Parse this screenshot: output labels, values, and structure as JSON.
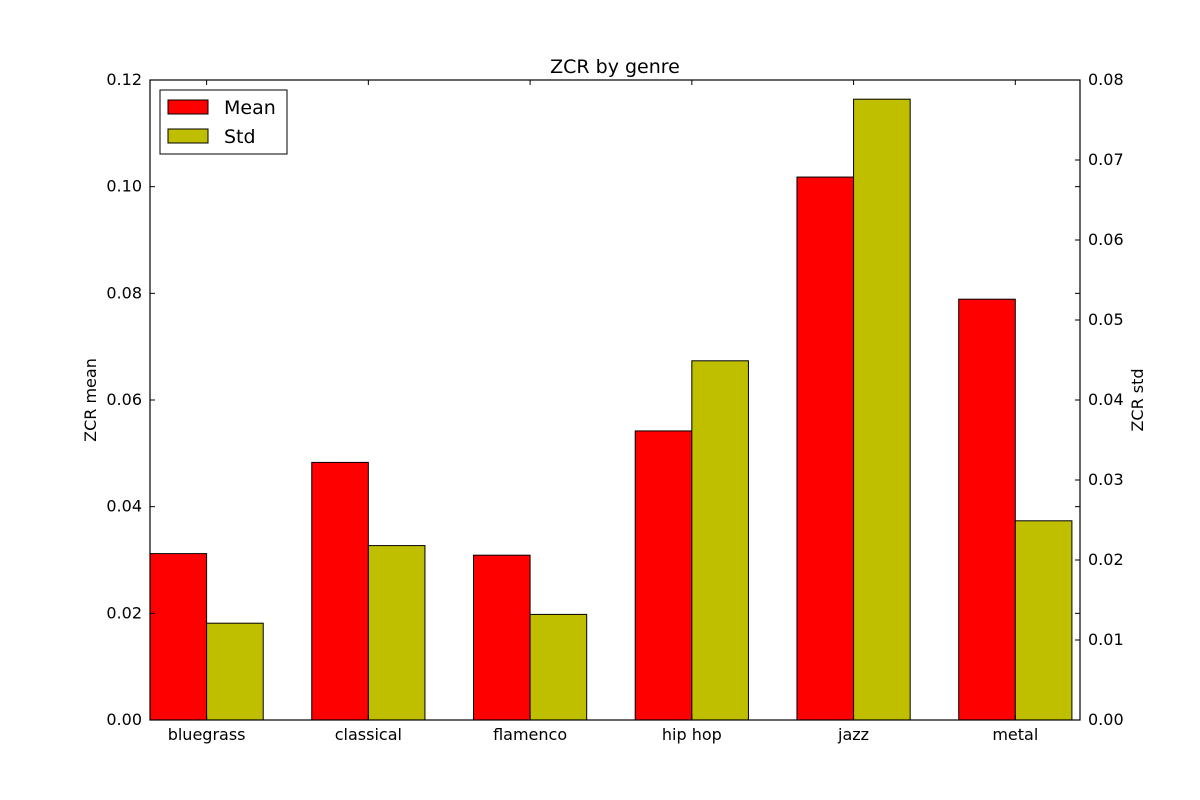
{
  "chart_data": {
    "type": "bar",
    "title": "ZCR by genre",
    "categories": [
      "bluegrass",
      "classical",
      "flamenco",
      "hip hop",
      "jazz",
      "metal"
    ],
    "series": [
      {
        "name": "Mean",
        "axis": "left",
        "color": "#ff0000",
        "values": [
          0.0312,
          0.0483,
          0.0309,
          0.0542,
          0.1018,
          0.0789
        ]
      },
      {
        "name": "Std",
        "axis": "right",
        "color": "#bfbf00",
        "values": [
          0.0121,
          0.0218,
          0.0132,
          0.0449,
          0.0776,
          0.0249
        ]
      }
    ],
    "ylabel_left": "ZCR mean",
    "ylabel_right": "ZCR std",
    "ylim_left": [
      0,
      0.12
    ],
    "ylim_right": [
      0,
      0.08
    ],
    "yticks_left": [
      "0.00",
      "0.02",
      "0.04",
      "0.06",
      "0.08",
      "0.10",
      "0.12"
    ],
    "yticks_right": [
      "0.00",
      "0.01",
      "0.02",
      "0.03",
      "0.04",
      "0.05",
      "0.06",
      "0.07",
      "0.08"
    ],
    "grid": false,
    "legend_position": "top-left"
  }
}
